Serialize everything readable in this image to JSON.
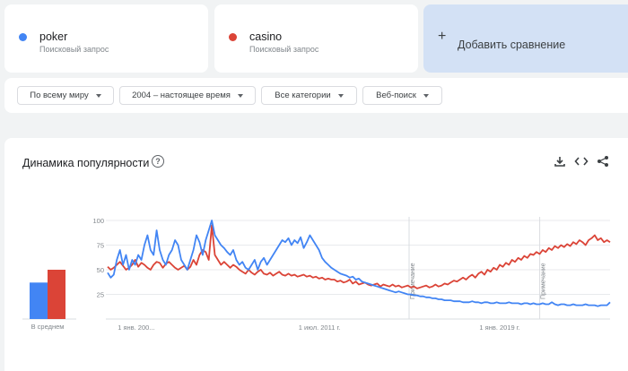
{
  "terms": [
    {
      "name": "poker",
      "subtitle": "Поисковый запрос",
      "color": "#4285f4"
    },
    {
      "name": "casino",
      "subtitle": "Поисковый запрос",
      "color": "#db4437"
    }
  ],
  "add_comparison": {
    "label": "Добавить сравнение",
    "icon": "plus-icon"
  },
  "filters": {
    "region": "По всему миру",
    "period": "2004 – настоящее время",
    "category": "Все категории",
    "search_type": "Веб-поиск"
  },
  "chart_card": {
    "title": "Динамика популярности",
    "icons": [
      "help-icon",
      "download-icon",
      "embed-icon",
      "share-icon"
    ]
  },
  "chart_data": {
    "type": "line",
    "x_labels": [
      "1 янв. 200...",
      "1 июл. 2011 г.",
      "1 янв. 2019 г."
    ],
    "y_ticks": [
      25,
      50,
      75,
      100
    ],
    "ylim": [
      0,
      100
    ],
    "annotations": [
      "Примечание",
      "Примечание"
    ],
    "series": [
      {
        "name": "poker",
        "color": "#4285f4",
        "values": [
          47,
          42,
          45,
          60,
          70,
          55,
          65,
          50,
          60,
          55,
          65,
          60,
          75,
          85,
          70,
          65,
          90,
          70,
          60,
          55,
          65,
          70,
          80,
          75,
          60,
          55,
          50,
          60,
          70,
          85,
          78,
          65,
          80,
          90,
          100,
          85,
          80,
          75,
          72,
          68,
          65,
          70,
          60,
          55,
          58,
          52,
          50,
          55,
          60,
          50,
          58,
          62,
          55,
          60,
          65,
          70,
          75,
          80,
          78,
          82,
          75,
          80,
          77,
          83,
          72,
          78,
          85,
          80,
          75,
          70,
          62,
          58,
          55,
          52,
          50,
          48,
          46,
          45,
          44,
          42,
          43,
          40,
          41,
          38,
          37,
          36,
          35,
          34,
          33,
          32,
          31,
          30,
          29,
          28,
          27,
          28,
          27,
          26,
          25,
          25,
          24,
          24,
          23,
          23,
          22,
          22,
          21,
          21,
          20,
          20,
          19,
          19,
          19,
          18,
          18,
          18,
          17,
          17,
          17,
          18,
          17,
          17,
          16,
          17,
          17,
          16,
          16,
          17,
          16,
          16,
          16,
          17,
          16,
          16,
          16,
          15,
          16,
          16,
          15,
          16,
          15,
          15,
          16,
          15,
          15,
          17,
          15,
          14,
          15,
          15,
          14,
          14,
          15,
          14,
          14,
          14,
          15,
          14,
          14,
          14,
          13,
          14,
          14,
          14,
          17
        ]
      },
      {
        "name": "casino",
        "color": "#db4437",
        "values": [
          53,
          50,
          52,
          55,
          58,
          54,
          50,
          52,
          55,
          60,
          53,
          57,
          55,
          52,
          50,
          55,
          58,
          57,
          52,
          56,
          58,
          55,
          52,
          50,
          52,
          54,
          50,
          53,
          60,
          55,
          65,
          70,
          68,
          60,
          95,
          65,
          60,
          55,
          58,
          55,
          52,
          55,
          53,
          50,
          48,
          46,
          50,
          47,
          45,
          48,
          50,
          46,
          45,
          47,
          44,
          46,
          48,
          45,
          44,
          46,
          44,
          45,
          43,
          44,
          45,
          43,
          44,
          42,
          43,
          41,
          42,
          40,
          41,
          40,
          40,
          38,
          39,
          37,
          38,
          40,
          36,
          38,
          35,
          36,
          37,
          35,
          34,
          35,
          36,
          33,
          35,
          34,
          33,
          35,
          33,
          34,
          32,
          33,
          34,
          32,
          33,
          31,
          32,
          33,
          34,
          32,
          33,
          35,
          33,
          34,
          36,
          35,
          37,
          39,
          38,
          40,
          42,
          40,
          43,
          45,
          42,
          46,
          48,
          45,
          50,
          48,
          52,
          50,
          55,
          53,
          57,
          55,
          60,
          58,
          62,
          60,
          64,
          62,
          66,
          65,
          68,
          66,
          70,
          68,
          72,
          70,
          74,
          72,
          75,
          73,
          76,
          74,
          78,
          76,
          80,
          78,
          75,
          80,
          82,
          85,
          80,
          82,
          78,
          80,
          78
        ]
      }
    ],
    "average": {
      "label": "В среднем",
      "values": [
        37,
        50
      ]
    }
  }
}
